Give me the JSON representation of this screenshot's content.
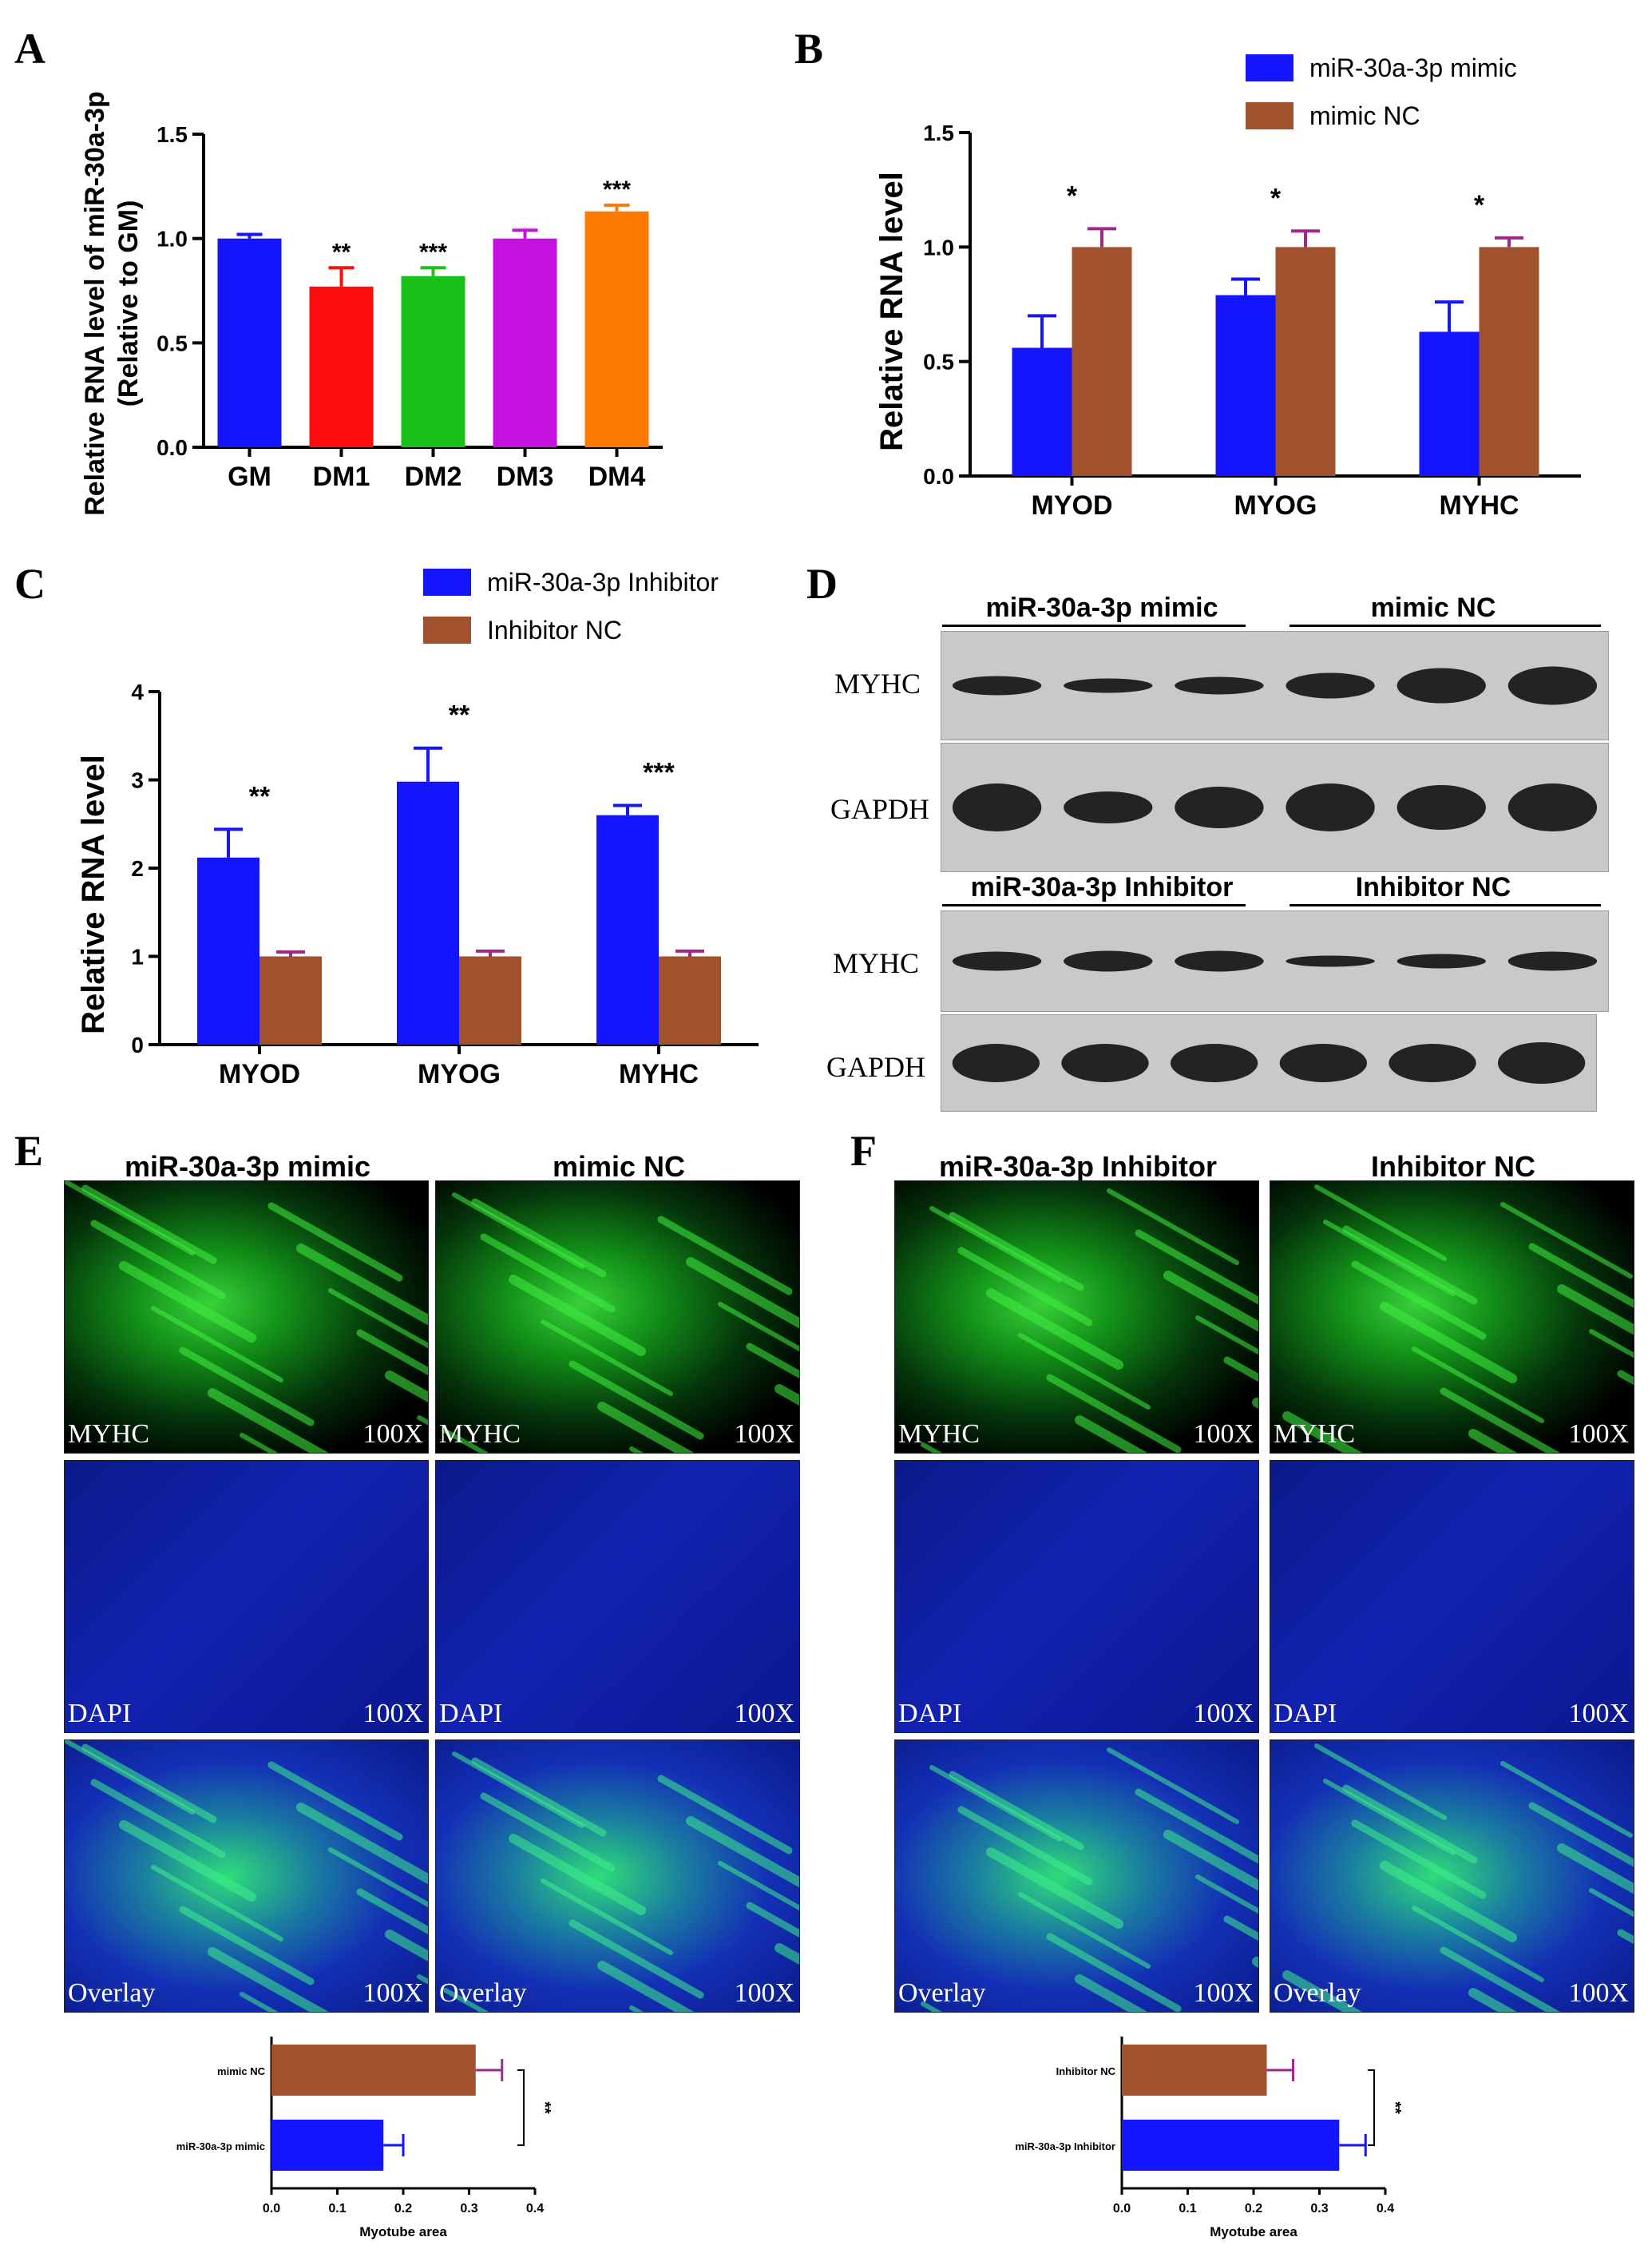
{
  "panels": {
    "A": "A",
    "B": "B",
    "C": "C",
    "D": "D",
    "E": "E",
    "F": "F"
  },
  "charts": {
    "A": {
      "type": "bar",
      "ylabel_line1": "Relative RNA level of miR-30a-3p",
      "ylabel_line2": "(Relative to GM)",
      "ylim": [
        0,
        1.5
      ],
      "yticks": [
        "0.0",
        "0.5",
        "1.0",
        "1.5"
      ],
      "categories": [
        "GM",
        "DM1",
        "DM2",
        "DM3",
        "DM4"
      ],
      "values": [
        1.0,
        0.77,
        0.82,
        1.0,
        1.13
      ],
      "errors": [
        0.02,
        0.09,
        0.04,
        0.04,
        0.03
      ],
      "colors": [
        "#1414ff",
        "#ff0d0d",
        "#19c219",
        "#c511e0",
        "#ff7a00"
      ],
      "significance": [
        "",
        "**",
        "***",
        "",
        "***"
      ]
    },
    "B": {
      "type": "bar",
      "ylabel": "Relative RNA level",
      "ylim": [
        0,
        1.5
      ],
      "yticks": [
        "0.0",
        "0.5",
        "1.0",
        "1.5"
      ],
      "categories": [
        "MYOD",
        "MYOG",
        "MYHC"
      ],
      "series": [
        {
          "name": "miR-30a-3p mimic",
          "values": [
            0.56,
            0.79,
            0.63
          ],
          "errors": [
            0.14,
            0.07,
            0.13
          ],
          "color": "#1414ff"
        },
        {
          "name": "mimic NC",
          "values": [
            1.0,
            1.0,
            1.0
          ],
          "errors": [
            0.08,
            0.07,
            0.04
          ],
          "color": "#a0522d"
        }
      ],
      "significance": [
        "*",
        "*",
        "*"
      ]
    },
    "C": {
      "type": "bar",
      "ylabel": "Relative RNA level",
      "ylim": [
        0,
        4
      ],
      "yticks": [
        "0",
        "1",
        "2",
        "3",
        "4"
      ],
      "categories": [
        "MYOD",
        "MYOG",
        "MYHC"
      ],
      "series": [
        {
          "name": "miR-30a-3p Inhibitor",
          "values": [
            2.12,
            2.98,
            2.6
          ],
          "errors": [
            0.32,
            0.38,
            0.11
          ],
          "color": "#1414ff"
        },
        {
          "name": "Inhibitor NC",
          "values": [
            1.0,
            1.0,
            1.0
          ],
          "errors": [
            0.05,
            0.06,
            0.06
          ],
          "color": "#a0522d"
        }
      ],
      "significance": [
        "**",
        "**",
        "***"
      ]
    },
    "E": {
      "type": "bar",
      "xlabel": "Myotube area",
      "xlim": [
        0,
        0.4
      ],
      "xticks": [
        "0.0",
        "0.1",
        "0.2",
        "0.3",
        "0.4"
      ],
      "categories": [
        "mimic NC",
        "miR-30a-3p mimic"
      ],
      "values": [
        0.31,
        0.17
      ],
      "errors": [
        0.04,
        0.03
      ],
      "colors": [
        "#a0522d",
        "#1414ff"
      ],
      "significance": "**"
    },
    "F": {
      "type": "bar",
      "xlabel": "Myotube area",
      "xlim": [
        0,
        0.4
      ],
      "xticks": [
        "0.0",
        "0.1",
        "0.2",
        "0.3",
        "0.4"
      ],
      "categories": [
        "Inhibitor NC",
        "miR-30a-3p Inhibitor"
      ],
      "values": [
        0.22,
        0.33
      ],
      "errors": [
        0.04,
        0.04
      ],
      "colors": [
        "#a0522d",
        "#1414ff"
      ],
      "significance": "**"
    }
  },
  "blots": {
    "top_groups": [
      "miR-30a-3p mimic",
      "mimic NC"
    ],
    "bottom_groups": [
      "miR-30a-3p Inhibitor",
      "Inhibitor NC"
    ],
    "row_labels": [
      "MYHC",
      "GAPDH",
      "MYHC",
      "GAPDH"
    ]
  },
  "micrographs": {
    "E_titles": [
      "miR-30a-3p mimic",
      "mimic NC"
    ],
    "F_titles": [
      "miR-30a-3p Inhibitor",
      "Inhibitor NC"
    ],
    "rows": [
      "MYHC",
      "DAPI",
      "Overlay"
    ],
    "magnification": "100X"
  }
}
